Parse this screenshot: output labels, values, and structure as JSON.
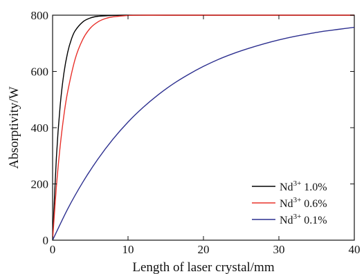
{
  "chart_data": {
    "type": "line",
    "title": "",
    "xlabel": "Length of laser crystal/mm",
    "ylabel": "Absorptivity/W",
    "xlim": [
      0,
      40
    ],
    "ylim": [
      0,
      800
    ],
    "x_ticks": [
      0,
      10,
      20,
      30,
      40
    ],
    "y_ticks": [
      0,
      200,
      400,
      600,
      800
    ],
    "grid": false,
    "legend_position": "bottom-right",
    "series": [
      {
        "name": "Nd3+ 1.0%",
        "label_base": "Nd",
        "label_sup": "3+",
        "label_rest": " 1.0%",
        "color": "#000000",
        "x": [
          0,
          0.5,
          1,
          1.5,
          2,
          2.5,
          3,
          4,
          5,
          6,
          8,
          10,
          15,
          20,
          30,
          40
        ],
        "y": [
          0,
          292,
          477,
          594,
          668,
          715,
          745,
          776,
          790,
          796,
          799,
          800,
          800,
          800,
          800,
          800
        ]
      },
      {
        "name": "Nd3+ 0.6%",
        "label_base": "Nd",
        "label_sup": "3+",
        "label_rest": " 0.6%",
        "color": "#e8302a",
        "x": [
          0,
          0.5,
          1,
          1.5,
          2,
          3,
          4,
          5,
          6,
          7,
          8,
          10,
          12,
          15,
          20,
          30,
          40
        ],
        "y": [
          0,
          189,
          333,
          444,
          528,
          645,
          714,
          754,
          776,
          788,
          794,
          799,
          800,
          800,
          800,
          800,
          800
        ]
      },
      {
        "name": "Nd3+ 0.1%",
        "label_base": "Nd",
        "label_sup": "3+",
        "label_rest": " 0.1%",
        "color": "#2c2f8f",
        "x": [
          0,
          2,
          4,
          6,
          8,
          10,
          12,
          14,
          16,
          18,
          20,
          22,
          24,
          26,
          28,
          30,
          32,
          34,
          36,
          38,
          40
        ],
        "y": [
          0,
          111,
          206,
          288,
          359,
          420,
          472,
          517,
          556,
          589,
          618,
          643,
          664,
          682,
          698,
          712,
          724,
          734,
          743,
          750,
          757
        ]
      }
    ]
  }
}
